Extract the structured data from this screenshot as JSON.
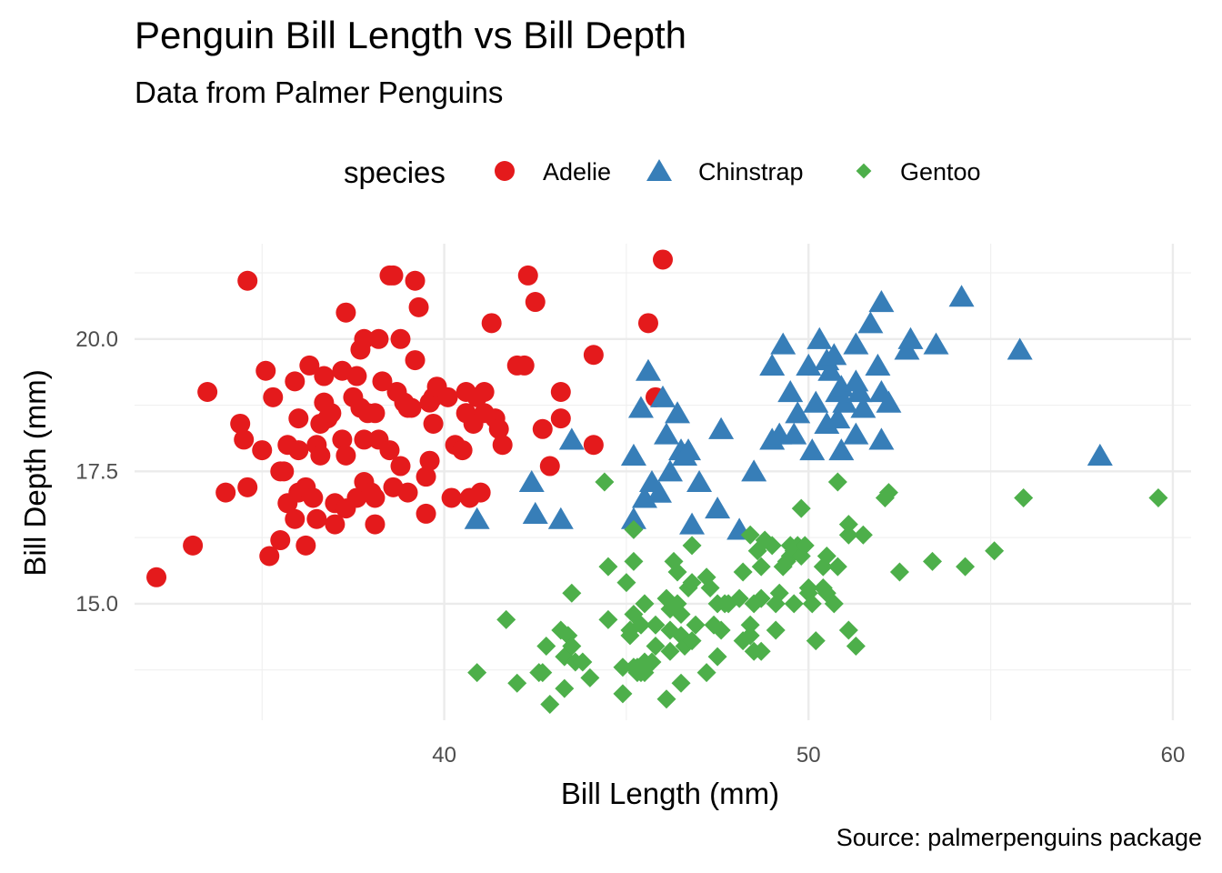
{
  "chart_data": {
    "type": "scatter",
    "title": "Penguin Bill Length vs Bill Depth",
    "subtitle": "Data from Palmer Penguins",
    "caption": "Source: palmerpenguins package",
    "xlabel": "Bill Length (mm)",
    "ylabel": "Bill Depth (mm)",
    "xlim": [
      31.5,
      60.5
    ],
    "ylim": [
      12.8,
      21.8
    ],
    "x_ticks": [
      40,
      50,
      60
    ],
    "x_tick_labels": [
      "40",
      "50",
      "60"
    ],
    "y_ticks": [
      15,
      17.5,
      20
    ],
    "y_tick_labels": [
      "15.0",
      "17.5",
      "20.0"
    ],
    "grid": true,
    "legend": {
      "title": "species",
      "position": "top"
    },
    "series": [
      {
        "name": "Adelie",
        "marker": "circle",
        "color": "#E41A1C",
        "points": [
          [
            32.1,
            15.5
          ],
          [
            33.1,
            16.1
          ],
          [
            33.5,
            19.0
          ],
          [
            34.0,
            17.1
          ],
          [
            34.4,
            18.4
          ],
          [
            34.5,
            18.1
          ],
          [
            34.6,
            21.1
          ],
          [
            34.6,
            17.2
          ],
          [
            35.0,
            17.9
          ],
          [
            35.1,
            19.4
          ],
          [
            35.2,
            15.9
          ],
          [
            35.3,
            18.9
          ],
          [
            35.5,
            16.2
          ],
          [
            35.5,
            17.5
          ],
          [
            35.6,
            17.5
          ],
          [
            35.7,
            16.9
          ],
          [
            35.7,
            18.0
          ],
          [
            35.9,
            16.6
          ],
          [
            35.9,
            19.2
          ],
          [
            36.0,
            18.5
          ],
          [
            36.0,
            17.9
          ],
          [
            36.0,
            17.1
          ],
          [
            36.2,
            16.1
          ],
          [
            36.2,
            17.2
          ],
          [
            36.3,
            19.5
          ],
          [
            36.4,
            17.0
          ],
          [
            36.5,
            18.0
          ],
          [
            36.5,
            16.6
          ],
          [
            36.6,
            17.8
          ],
          [
            36.6,
            18.4
          ],
          [
            36.7,
            19.3
          ],
          [
            36.7,
            18.8
          ],
          [
            36.8,
            18.5
          ],
          [
            36.9,
            18.6
          ],
          [
            37.0,
            16.9
          ],
          [
            37.0,
            16.5
          ],
          [
            37.2,
            18.1
          ],
          [
            37.2,
            19.4
          ],
          [
            37.3,
            17.8
          ],
          [
            37.3,
            20.5
          ],
          [
            37.3,
            16.8
          ],
          [
            37.5,
            18.9
          ],
          [
            37.6,
            19.3
          ],
          [
            37.6,
            17.0
          ],
          [
            37.7,
            18.7
          ],
          [
            37.7,
            19.8
          ],
          [
            37.8,
            18.1
          ],
          [
            37.8,
            17.3
          ],
          [
            37.8,
            20.0
          ],
          [
            37.9,
            18.6
          ],
          [
            38.0,
            17.1
          ],
          [
            38.1,
            18.6
          ],
          [
            38.1,
            17.0
          ],
          [
            38.1,
            16.5
          ],
          [
            38.2,
            18.1
          ],
          [
            38.2,
            20.0
          ],
          [
            38.3,
            19.2
          ],
          [
            38.5,
            17.9
          ],
          [
            38.5,
            21.2
          ],
          [
            38.6,
            17.2
          ],
          [
            38.6,
            21.2
          ],
          [
            38.7,
            19.0
          ],
          [
            38.8,
            17.6
          ],
          [
            38.8,
            20.0
          ],
          [
            38.9,
            18.8
          ],
          [
            39.0,
            17.1
          ],
          [
            39.0,
            18.7
          ],
          [
            39.1,
            18.7
          ],
          [
            39.2,
            19.6
          ],
          [
            39.2,
            21.1
          ],
          [
            39.3,
            20.6
          ],
          [
            39.5,
            16.7
          ],
          [
            39.5,
            17.4
          ],
          [
            39.6,
            17.7
          ],
          [
            39.6,
            18.8
          ],
          [
            39.7,
            18.4
          ],
          [
            39.7,
            18.9
          ],
          [
            39.8,
            19.1
          ],
          [
            40.1,
            18.9
          ],
          [
            40.2,
            17.0
          ],
          [
            40.3,
            18.0
          ],
          [
            40.5,
            17.9
          ],
          [
            40.6,
            18.6
          ],
          [
            40.6,
            19.0
          ],
          [
            40.7,
            17.0
          ],
          [
            40.8,
            18.4
          ],
          [
            40.9,
            18.9
          ],
          [
            41.0,
            17.1
          ],
          [
            41.1,
            18.6
          ],
          [
            41.1,
            19.0
          ],
          [
            41.3,
            20.3
          ],
          [
            41.4,
            18.5
          ],
          [
            41.5,
            18.3
          ],
          [
            41.6,
            18.0
          ],
          [
            42.0,
            19.5
          ],
          [
            42.2,
            19.5
          ],
          [
            42.3,
            21.2
          ],
          [
            42.5,
            20.7
          ],
          [
            42.7,
            18.3
          ],
          [
            42.9,
            17.6
          ],
          [
            43.2,
            19.0
          ],
          [
            43.2,
            18.5
          ],
          [
            44.1,
            18.0
          ],
          [
            44.1,
            19.7
          ],
          [
            45.6,
            20.3
          ],
          [
            45.8,
            18.9
          ],
          [
            46.0,
            21.5
          ]
        ]
      },
      {
        "name": "Chinstrap",
        "marker": "triangle",
        "color": "#377EB8",
        "points": [
          [
            40.9,
            16.6
          ],
          [
            42.4,
            17.3
          ],
          [
            42.5,
            16.7
          ],
          [
            43.2,
            16.6
          ],
          [
            43.5,
            18.1
          ],
          [
            45.2,
            17.8
          ],
          [
            45.2,
            16.6
          ],
          [
            45.4,
            18.7
          ],
          [
            45.5,
            17.0
          ],
          [
            45.6,
            19.4
          ],
          [
            45.7,
            17.3
          ],
          [
            45.9,
            17.1
          ],
          [
            46.0,
            18.9
          ],
          [
            46.1,
            18.2
          ],
          [
            46.2,
            17.5
          ],
          [
            46.4,
            18.6
          ],
          [
            46.5,
            17.9
          ],
          [
            46.6,
            17.8
          ],
          [
            46.7,
            17.9
          ],
          [
            46.8,
            16.5
          ],
          [
            47.0,
            17.3
          ],
          [
            47.5,
            16.8
          ],
          [
            47.6,
            18.3
          ],
          [
            48.1,
            16.4
          ],
          [
            48.5,
            17.5
          ],
          [
            49.0,
            19.5
          ],
          [
            49.0,
            18.1
          ],
          [
            49.2,
            18.2
          ],
          [
            49.3,
            19.9
          ],
          [
            49.5,
            19.0
          ],
          [
            49.6,
            18.2
          ],
          [
            49.7,
            18.6
          ],
          [
            50.0,
            19.5
          ],
          [
            50.1,
            17.9
          ],
          [
            50.2,
            18.8
          ],
          [
            50.3,
            20.0
          ],
          [
            50.5,
            18.4
          ],
          [
            50.5,
            19.6
          ],
          [
            50.6,
            19.4
          ],
          [
            50.7,
            19.7
          ],
          [
            50.8,
            18.5
          ],
          [
            50.8,
            19.0
          ],
          [
            50.9,
            17.9
          ],
          [
            50.9,
            19.1
          ],
          [
            51.0,
            18.8
          ],
          [
            51.3,
            18.2
          ],
          [
            51.3,
            19.2
          ],
          [
            51.3,
            19.9
          ],
          [
            51.4,
            19.0
          ],
          [
            51.5,
            18.7
          ],
          [
            51.7,
            20.3
          ],
          [
            51.9,
            19.5
          ],
          [
            52.0,
            19.0
          ],
          [
            52.0,
            18.1
          ],
          [
            52.0,
            20.7
          ],
          [
            52.2,
            18.8
          ],
          [
            52.7,
            19.8
          ],
          [
            52.8,
            20.0
          ],
          [
            53.5,
            19.9
          ],
          [
            54.2,
            20.8
          ],
          [
            55.8,
            19.8
          ],
          [
            58.0,
            17.8
          ]
        ]
      },
      {
        "name": "Gentoo",
        "marker": "diamond",
        "color": "#4DAF4A",
        "points": [
          [
            40.9,
            13.7
          ],
          [
            41.7,
            14.7
          ],
          [
            42.0,
            13.5
          ],
          [
            42.6,
            13.7
          ],
          [
            42.7,
            13.7
          ],
          [
            42.8,
            14.2
          ],
          [
            42.9,
            13.1
          ],
          [
            43.2,
            14.5
          ],
          [
            43.3,
            14.0
          ],
          [
            43.3,
            13.4
          ],
          [
            43.4,
            14.4
          ],
          [
            43.5,
            14.2
          ],
          [
            43.5,
            15.2
          ],
          [
            43.6,
            13.9
          ],
          [
            43.8,
            13.9
          ],
          [
            44.0,
            13.6
          ],
          [
            44.4,
            17.3
          ],
          [
            44.5,
            14.7
          ],
          [
            44.5,
            15.7
          ],
          [
            44.9,
            13.3
          ],
          [
            44.9,
            13.8
          ],
          [
            45.0,
            15.4
          ],
          [
            45.1,
            14.5
          ],
          [
            45.1,
            14.4
          ],
          [
            45.2,
            13.8
          ],
          [
            45.2,
            14.8
          ],
          [
            45.2,
            15.8
          ],
          [
            45.2,
            16.4
          ],
          [
            45.3,
            13.7
          ],
          [
            45.3,
            13.8
          ],
          [
            45.4,
            14.6
          ],
          [
            45.4,
            13.7
          ],
          [
            45.5,
            13.7
          ],
          [
            45.5,
            13.9
          ],
          [
            45.5,
            15.0
          ],
          [
            45.7,
            13.9
          ],
          [
            45.8,
            14.2
          ],
          [
            45.8,
            14.6
          ],
          [
            46.1,
            13.2
          ],
          [
            46.1,
            15.1
          ],
          [
            46.2,
            14.1
          ],
          [
            46.2,
            14.5
          ],
          [
            46.2,
            14.9
          ],
          [
            46.3,
            15.8
          ],
          [
            46.4,
            15.0
          ],
          [
            46.4,
            15.6
          ],
          [
            46.5,
            13.5
          ],
          [
            46.5,
            14.4
          ],
          [
            46.5,
            14.8
          ],
          [
            46.6,
            14.2
          ],
          [
            46.7,
            15.3
          ],
          [
            46.8,
            14.3
          ],
          [
            46.8,
            15.4
          ],
          [
            46.8,
            16.1
          ],
          [
            46.9,
            14.6
          ],
          [
            47.2,
            13.7
          ],
          [
            47.2,
            15.5
          ],
          [
            47.3,
            15.3
          ],
          [
            47.4,
            14.6
          ],
          [
            47.5,
            14.0
          ],
          [
            47.5,
            15.0
          ],
          [
            47.6,
            14.5
          ],
          [
            47.7,
            15.0
          ],
          [
            47.8,
            15.0
          ],
          [
            48.1,
            15.1
          ],
          [
            48.2,
            14.3
          ],
          [
            48.2,
            15.6
          ],
          [
            48.4,
            14.4
          ],
          [
            48.4,
            14.6
          ],
          [
            48.4,
            16.3
          ],
          [
            48.5,
            14.1
          ],
          [
            48.5,
            15.0
          ],
          [
            48.6,
            16.0
          ],
          [
            48.7,
            14.1
          ],
          [
            48.7,
            15.1
          ],
          [
            48.7,
            15.7
          ],
          [
            48.8,
            16.2
          ],
          [
            49.0,
            16.1
          ],
          [
            49.1,
            14.5
          ],
          [
            49.1,
            15.0
          ],
          [
            49.2,
            15.2
          ],
          [
            49.3,
            15.7
          ],
          [
            49.4,
            15.8
          ],
          [
            49.5,
            15.9
          ],
          [
            49.5,
            16.1
          ],
          [
            49.6,
            15.0
          ],
          [
            49.6,
            16.0
          ],
          [
            49.7,
            16.1
          ],
          [
            49.8,
            15.9
          ],
          [
            49.8,
            16.8
          ],
          [
            49.9,
            16.1
          ],
          [
            50.0,
            15.2
          ],
          [
            50.0,
            15.3
          ],
          [
            50.1,
            15.0
          ],
          [
            50.2,
            14.3
          ],
          [
            50.4,
            15.3
          ],
          [
            50.4,
            15.7
          ],
          [
            50.5,
            15.2
          ],
          [
            50.5,
            15.9
          ],
          [
            50.7,
            15.0
          ],
          [
            50.8,
            15.7
          ],
          [
            50.8,
            17.3
          ],
          [
            51.1,
            14.5
          ],
          [
            51.1,
            16.3
          ],
          [
            51.1,
            16.5
          ],
          [
            51.3,
            14.2
          ],
          [
            51.5,
            16.3
          ],
          [
            52.1,
            17.0
          ],
          [
            52.2,
            17.1
          ],
          [
            52.5,
            15.6
          ],
          [
            53.4,
            15.8
          ],
          [
            54.3,
            15.7
          ],
          [
            55.1,
            16.0
          ],
          [
            55.9,
            17.0
          ],
          [
            59.6,
            17.0
          ]
        ]
      }
    ]
  }
}
